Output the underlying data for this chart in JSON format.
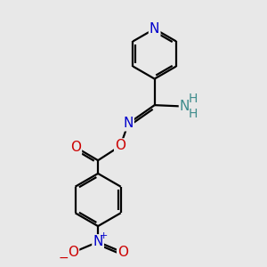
{
  "bg_color": "#e8e8e8",
  "atom_colors": {
    "N": "#0000cc",
    "O": "#cc0000",
    "N_amino": "#3d8b8b",
    "N_nitro": "#0000cc",
    "O_nitro": "#cc0000"
  },
  "bond_color": "#000000",
  "bond_width": 1.6,
  "fig_size": [
    3.0,
    3.0
  ],
  "xlim": [
    0,
    10
  ],
  "ylim": [
    0,
    10
  ],
  "font_size": 11
}
